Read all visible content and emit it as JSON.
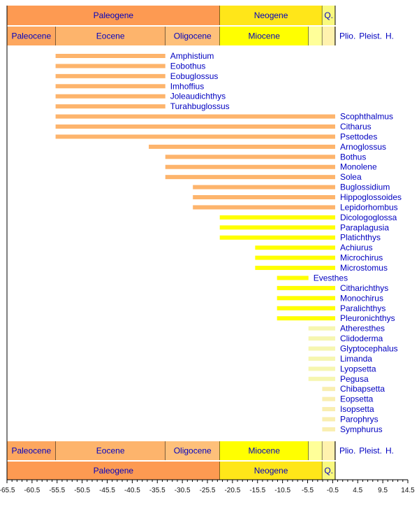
{
  "chart_data": {
    "type": "timeline",
    "xlim": [
      -65.5,
      14.5
    ],
    "x_ticks": [
      -65.5,
      -60.5,
      -55.5,
      -50.5,
      -45.5,
      -40.5,
      -35.5,
      -30.5,
      -25.5,
      -20.5,
      -15.5,
      -10.5,
      -5.5,
      -0.5,
      4.5,
      9.5,
      14.5
    ],
    "periods": [
      {
        "label": "Paleogene",
        "start": -65.5,
        "end": -23.03,
        "color": "#fd9a52"
      },
      {
        "label": "Neogene",
        "start": -23.03,
        "end": -2.588,
        "color": "#ffe619"
      },
      {
        "label": "Q.",
        "start": -2.588,
        "end": 0,
        "color": "#f9f97f"
      }
    ],
    "epochs": [
      {
        "label": "Paleocene",
        "start": -65.5,
        "end": -55.8,
        "color": "#fda75f"
      },
      {
        "label": "Eocene",
        "start": -55.8,
        "end": -33.9,
        "color": "#fdb46c"
      },
      {
        "label": "Oligocene",
        "start": -33.9,
        "end": -23.03,
        "color": "#fec07a"
      },
      {
        "label": "Miocene",
        "start": -23.03,
        "end": -5.332,
        "color": "#ffff00"
      },
      {
        "label": "Plio.",
        "start": -5.332,
        "end": -2.588,
        "color": "#ffff99"
      },
      {
        "label": "Pleist.",
        "start": -2.588,
        "end": -0.0117,
        "color": "#fff2ae"
      },
      {
        "label": "H.",
        "start": -0.0117,
        "end": 0,
        "color": "#fef2e0"
      }
    ],
    "taxa": [
      {
        "name": "Amphistium",
        "start": -55.8,
        "end": -33.9,
        "color": "#fdb46c"
      },
      {
        "name": "Eobothus",
        "start": -55.8,
        "end": -33.9,
        "color": "#fdb46c"
      },
      {
        "name": "Eobuglossus",
        "start": -55.8,
        "end": -33.9,
        "color": "#fdb46c"
      },
      {
        "name": "Imhoffius",
        "start": -55.8,
        "end": -33.9,
        "color": "#fdb46c"
      },
      {
        "name": "Joleaudichthys",
        "start": -55.8,
        "end": -33.9,
        "color": "#fdb46c"
      },
      {
        "name": "Turahbuglossus",
        "start": -55.8,
        "end": -33.9,
        "color": "#fdb46c"
      },
      {
        "name": "Scophthalmus",
        "start": -55.8,
        "end": 0,
        "color": "#fdb46c"
      },
      {
        "name": "Citharus",
        "start": -55.8,
        "end": 0,
        "color": "#fdb46c"
      },
      {
        "name": "Psettodes",
        "start": -55.8,
        "end": 0,
        "color": "#fdb46c"
      },
      {
        "name": "Arnoglossus",
        "start": -37.2,
        "end": 0,
        "color": "#fdb46c"
      },
      {
        "name": "Bothus",
        "start": -33.9,
        "end": 0,
        "color": "#fdb46c"
      },
      {
        "name": "Monolene",
        "start": -33.9,
        "end": 0,
        "color": "#fdb46c"
      },
      {
        "name": "Solea",
        "start": -33.9,
        "end": 0,
        "color": "#fdb46c"
      },
      {
        "name": "Buglossidium",
        "start": -28.4,
        "end": 0,
        "color": "#fdb46c"
      },
      {
        "name": "Hippoglossoides",
        "start": -28.4,
        "end": 0,
        "color": "#fdb46c"
      },
      {
        "name": "Lepidorhombus",
        "start": -28.4,
        "end": 0,
        "color": "#fdb46c"
      },
      {
        "name": "Dicologoglossa",
        "start": -23.03,
        "end": 0,
        "color": "#ffff00"
      },
      {
        "name": "Paraplagusia",
        "start": -23.03,
        "end": 0,
        "color": "#ffff00"
      },
      {
        "name": "Platichthys",
        "start": -23.03,
        "end": 0,
        "color": "#ffff00"
      },
      {
        "name": "Achiurus",
        "start": -15.97,
        "end": 0,
        "color": "#ffff00"
      },
      {
        "name": "Microchirus",
        "start": -15.97,
        "end": 0,
        "color": "#ffff00"
      },
      {
        "name": "Microstomus",
        "start": -15.97,
        "end": 0,
        "color": "#ffff00"
      },
      {
        "name": "Evesthes",
        "start": -11.608,
        "end": -5.332,
        "color": "#ffff00"
      },
      {
        "name": "Citharichthys",
        "start": -11.608,
        "end": 0,
        "color": "#ffff00"
      },
      {
        "name": "Monochirus",
        "start": -11.608,
        "end": 0,
        "color": "#ffff00"
      },
      {
        "name": "Paralichthys",
        "start": -11.608,
        "end": 0,
        "color": "#ffff00"
      },
      {
        "name": "Pleuronichthys",
        "start": -11.608,
        "end": 0,
        "color": "#ffff00"
      },
      {
        "name": "Atheresthes",
        "start": -5.332,
        "end": 0,
        "color": "#f6f6b0"
      },
      {
        "name": "Clidoderma",
        "start": -5.332,
        "end": 0,
        "color": "#f6f6b0"
      },
      {
        "name": "Glyptocephalus",
        "start": -5.332,
        "end": 0,
        "color": "#f6f6b0"
      },
      {
        "name": "Limanda",
        "start": -5.332,
        "end": 0,
        "color": "#f6f6b0"
      },
      {
        "name": "Lyopsetta",
        "start": -5.332,
        "end": 0,
        "color": "#f6f6b0"
      },
      {
        "name": "Pegusa",
        "start": -5.332,
        "end": 0,
        "color": "#f6f6b0"
      },
      {
        "name": "Chibapsetta",
        "start": -2.588,
        "end": 0,
        "color": "#f9eeb0"
      },
      {
        "name": "Eopsetta",
        "start": -2.588,
        "end": 0,
        "color": "#f9eeb0"
      },
      {
        "name": "Isopsetta",
        "start": -2.588,
        "end": 0,
        "color": "#f9eeb0"
      },
      {
        "name": "Parophrys",
        "start": -2.588,
        "end": 0,
        "color": "#f9eeb0"
      },
      {
        "name": "Symphurus",
        "start": -2.588,
        "end": 0,
        "color": "#f9eeb0"
      }
    ]
  }
}
